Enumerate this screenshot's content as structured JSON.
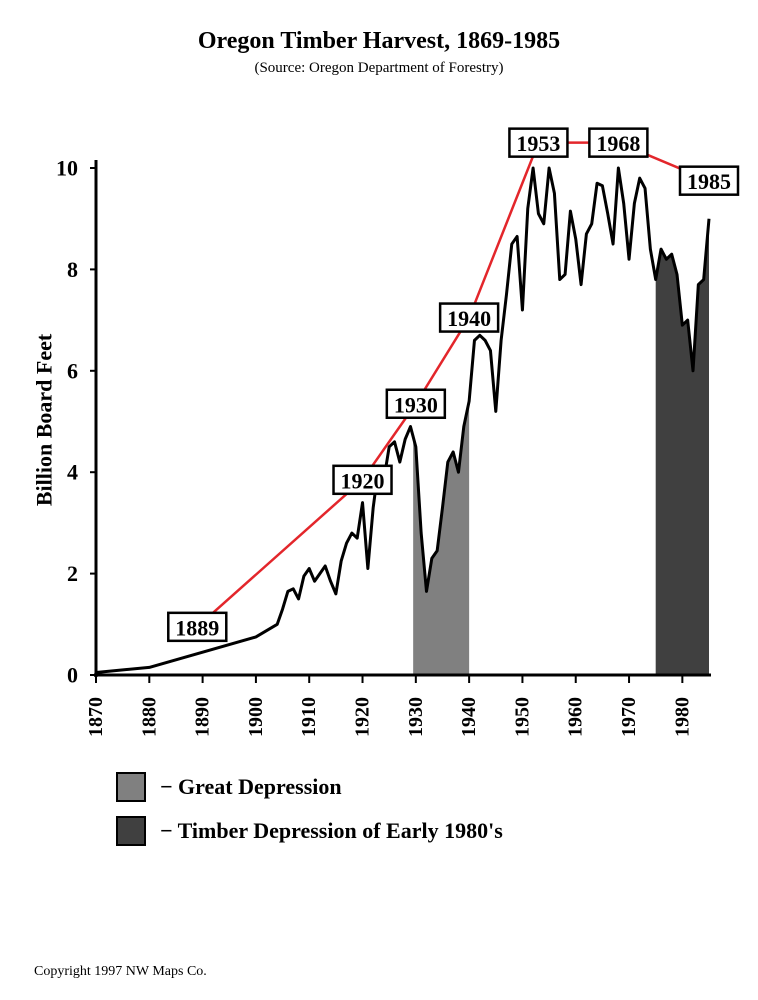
{
  "title": "Oregon Timber Harvest, 1869-1985",
  "subtitle": "(Source:  Oregon Department of Forestry)",
  "copyright": "Copyright 1997 NW Maps Co.",
  "colors": {
    "line": "#000000",
    "annotation_line": "#e3262b",
    "great_depression": "#808080",
    "timber_depression": "#404040"
  },
  "chart_data": {
    "type": "line",
    "title": "Oregon Timber Harvest, 1869-1985",
    "subtitle": "(Source:  Oregon Department of Forestry)",
    "xlabel": "",
    "ylabel": "Billion Board Feet",
    "xlim": [
      1870,
      1985
    ],
    "ylim": [
      0,
      10
    ],
    "xticks": [
      1870,
      1880,
      1890,
      1900,
      1910,
      1920,
      1930,
      1940,
      1950,
      1960,
      1970,
      1980
    ],
    "yticks": [
      0,
      2,
      4,
      6,
      8,
      10
    ],
    "grid": false,
    "series": [
      {
        "x": [
          1870,
          1880,
          1890,
          1900,
          1904,
          1905,
          1906,
          1907,
          1908,
          1909,
          1910,
          1911,
          1912,
          1913,
          1914,
          1915,
          1916,
          1917,
          1918,
          1919,
          1920,
          1921,
          1922,
          1923,
          1924,
          1925,
          1926,
          1927,
          1928,
          1929,
          1930,
          1931,
          1932,
          1933,
          1934,
          1935,
          1936,
          1937,
          1938,
          1939,
          1940,
          1941,
          1942,
          1943,
          1944,
          1945,
          1946,
          1947,
          1948,
          1949,
          1950,
          1951,
          1952,
          1953,
          1954,
          1955,
          1956,
          1957,
          1958,
          1959,
          1960,
          1961,
          1962,
          1963,
          1964,
          1965,
          1966,
          1967,
          1968,
          1969,
          1970,
          1971,
          1972,
          1973,
          1974,
          1975,
          1976,
          1977,
          1978,
          1979,
          1980,
          1981,
          1982,
          1983,
          1984,
          1985
        ],
        "values": [
          0.05,
          0.15,
          0.45,
          0.75,
          1.0,
          1.3,
          1.65,
          1.7,
          1.5,
          1.95,
          2.1,
          1.85,
          2.0,
          2.15,
          1.85,
          1.6,
          2.25,
          2.6,
          2.8,
          2.7,
          3.4,
          2.1,
          3.3,
          4.1,
          3.85,
          4.5,
          4.6,
          4.2,
          4.65,
          4.9,
          4.5,
          2.8,
          1.65,
          2.3,
          2.45,
          3.3,
          4.2,
          4.4,
          4.0,
          4.9,
          5.4,
          6.6,
          6.7,
          6.6,
          6.4,
          5.2,
          6.6,
          7.5,
          8.5,
          8.65,
          7.2,
          9.2,
          10.0,
          9.1,
          8.9,
          10.0,
          9.5,
          7.8,
          7.9,
          9.15,
          8.6,
          7.7,
          8.7,
          8.9,
          9.7,
          9.65,
          9.1,
          8.5,
          10.0,
          9.3,
          8.2,
          9.3,
          9.8,
          9.6,
          8.4,
          7.8,
          8.4,
          8.2,
          8.3,
          7.9,
          6.9,
          7.0,
          6.0,
          7.7,
          7.8,
          9.0
        ]
      }
    ],
    "shaded_periods": [
      {
        "name": "Great Depression",
        "x": [
          1929.5,
          1940
        ]
      },
      {
        "name": "Timber Depression of Early 1980's",
        "x": [
          1975,
          1985
        ]
      }
    ],
    "annotations": [
      {
        "label": "1889",
        "x": 1889,
        "y": 0.95
      },
      {
        "label": "1920",
        "x": 1920,
        "y": 3.85
      },
      {
        "label": "1930",
        "x": 1930,
        "y": 5.35
      },
      {
        "label": "1940",
        "x": 1940,
        "y": 7.05
      },
      {
        "label": "1953",
        "x": 1953,
        "y": 10.5
      },
      {
        "label": "1968",
        "x": 1968,
        "y": 10.5
      },
      {
        "label": "1985",
        "x": 1985,
        "y": 9.75
      }
    ],
    "legend": [
      {
        "label": "− Great Depression",
        "color": "#808080"
      },
      {
        "label": "− Timber Depression of Early 1980's",
        "color": "#404040"
      }
    ],
    "legend_position": "bottom-left"
  }
}
